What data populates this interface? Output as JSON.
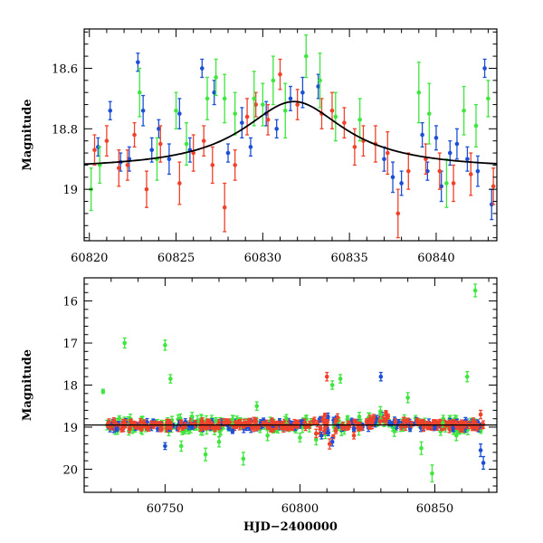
{
  "colors": {
    "blue": "#1a4fd6",
    "red": "#f0422a",
    "green": "#3ee63e",
    "model": "#000000"
  },
  "chart_data": [
    {
      "type": "scatter",
      "xlabel": "",
      "ylabel": "Magnitude",
      "xlim": [
        60819.7,
        60843.5
      ],
      "ylim": [
        19.17,
        18.47
      ],
      "y_inverted": true,
      "xticks": [
        "60820",
        "60825",
        "60830",
        "60835",
        "60840"
      ],
      "yticks": [
        "18.6",
        "18.8",
        "19"
      ],
      "model_curve": {
        "baseline": 18.935,
        "amplitude": 0.225,
        "t0": 60831.8,
        "tE": 3.6
      },
      "series": [
        {
          "color_key": "blue",
          "points": [
            [
              60820.5,
              18.86,
              0.03
            ],
            [
              60821.2,
              18.74,
              0.03
            ],
            [
              60821.8,
              18.91,
              0.03
            ],
            [
              60822.3,
              18.9,
              0.04
            ],
            [
              60822.8,
              18.58,
              0.03
            ],
            [
              60823.1,
              18.74,
              0.05
            ],
            [
              60823.6,
              18.87,
              0.04
            ],
            [
              60824.0,
              18.8,
              0.03
            ],
            [
              60824.6,
              18.9,
              0.05
            ],
            [
              60825.2,
              18.75,
              0.05
            ],
            [
              60825.8,
              18.87,
              0.04
            ],
            [
              60826.5,
              18.6,
              0.03
            ],
            [
              60827.2,
              18.68,
              0.04
            ],
            [
              60828.0,
              18.88,
              0.03
            ],
            [
              60828.8,
              18.78,
              0.05
            ],
            [
              60829.3,
              18.86,
              0.03
            ],
            [
              60830.2,
              18.75,
              0.04
            ],
            [
              60830.8,
              18.8,
              0.03
            ],
            [
              60831.6,
              18.7,
              0.04
            ],
            [
              60832.3,
              18.68,
              0.05
            ],
            [
              60833.2,
              18.66,
              0.04
            ],
            [
              60837.0,
              18.9,
              0.04
            ],
            [
              60837.5,
              18.96,
              0.05
            ],
            [
              60838.0,
              18.98,
              0.04
            ],
            [
              60839.2,
              18.82,
              0.04
            ],
            [
              60839.5,
              18.94,
              0.03
            ],
            [
              60840.0,
              18.83,
              0.04
            ],
            [
              60840.3,
              18.99,
              0.05
            ],
            [
              60840.8,
              18.88,
              0.04
            ],
            [
              60841.2,
              18.85,
              0.05
            ],
            [
              60841.8,
              18.9,
              0.04
            ],
            [
              60842.4,
              18.94,
              0.05
            ],
            [
              60842.8,
              18.6,
              0.03
            ],
            [
              60843.2,
              19.05,
              0.05
            ]
          ]
        },
        {
          "color_key": "red",
          "points": [
            [
              60820.3,
              18.87,
              0.05
            ],
            [
              60821.0,
              18.84,
              0.05
            ],
            [
              60821.7,
              18.93,
              0.06
            ],
            [
              60822.2,
              18.92,
              0.05
            ],
            [
              60822.6,
              18.82,
              0.04
            ],
            [
              60823.3,
              19.0,
              0.06
            ],
            [
              60824.1,
              18.85,
              0.06
            ],
            [
              60825.2,
              18.98,
              0.07
            ],
            [
              60826.0,
              18.88,
              0.06
            ],
            [
              60826.6,
              18.84,
              0.05
            ],
            [
              60827.1,
              18.92,
              0.06
            ],
            [
              60827.8,
              19.06,
              0.08
            ],
            [
              60828.4,
              18.92,
              0.05
            ],
            [
              60829.1,
              18.76,
              0.06
            ],
            [
              60829.6,
              18.72,
              0.04
            ],
            [
              60830.3,
              18.77,
              0.05
            ],
            [
              60831.0,
              18.62,
              0.05
            ],
            [
              60832.0,
              18.72,
              0.05
            ],
            [
              60833.4,
              18.75,
              0.05
            ],
            [
              60834.0,
              18.74,
              0.06
            ],
            [
              60834.7,
              18.78,
              0.05
            ],
            [
              60835.3,
              18.86,
              0.06
            ],
            [
              60835.8,
              18.84,
              0.05
            ],
            [
              60836.5,
              18.85,
              0.06
            ],
            [
              60837.2,
              18.88,
              0.07
            ],
            [
              60837.8,
              19.08,
              0.08
            ],
            [
              60838.4,
              18.94,
              0.06
            ],
            [
              60839.4,
              18.9,
              0.05
            ],
            [
              60840.2,
              18.94,
              0.06
            ],
            [
              60841.0,
              18.98,
              0.06
            ],
            [
              60842.0,
              18.95,
              0.07
            ],
            [
              60843.3,
              18.99,
              0.06
            ]
          ]
        },
        {
          "color_key": "green",
          "points": [
            [
              60820.1,
              19.0,
              0.07
            ],
            [
              60820.6,
              18.92,
              0.06
            ],
            [
              60822.9,
              18.68,
              0.08
            ],
            [
              60823.9,
              18.9,
              0.07
            ],
            [
              60825.0,
              18.74,
              0.06
            ],
            [
              60825.6,
              18.85,
              0.07
            ],
            [
              60826.8,
              18.7,
              0.07
            ],
            [
              60827.3,
              18.63,
              0.06
            ],
            [
              60827.8,
              18.7,
              0.08
            ],
            [
              60828.4,
              18.75,
              0.07
            ],
            [
              60829.5,
              18.7,
              0.09
            ],
            [
              60830.0,
              18.72,
              0.07
            ],
            [
              60830.6,
              18.64,
              0.08
            ],
            [
              60831.3,
              18.74,
              0.09
            ],
            [
              60832.5,
              18.56,
              0.07
            ],
            [
              60833.3,
              18.64,
              0.09
            ],
            [
              60834.2,
              18.76,
              0.08
            ],
            [
              60835.6,
              18.77,
              0.07
            ],
            [
              60839.0,
              18.68,
              0.1
            ],
            [
              60839.6,
              18.75,
              0.1
            ],
            [
              60840.6,
              18.98,
              0.08
            ],
            [
              60841.6,
              18.74,
              0.08
            ],
            [
              60842.3,
              18.79,
              0.07
            ],
            [
              60843.0,
              18.7,
              0.06
            ]
          ]
        }
      ]
    },
    {
      "type": "scatter",
      "xlabel": "HJD−2400000",
      "ylabel": "Magnitude",
      "xlim": [
        60720,
        60873
      ],
      "ylim": [
        20.55,
        15.45
      ],
      "y_inverted": true,
      "xticks": [
        "60750",
        "60800",
        "60850"
      ],
      "yticks": [
        "16",
        "17",
        "18",
        "19",
        "20"
      ],
      "baseline": 18.95,
      "series": [
        {
          "color_key": "green",
          "points": [
            [
              60727,
              18.15,
              0.05
            ],
            [
              60735,
              17.0,
              0.12
            ],
            [
              60750,
              17.05,
              0.12
            ],
            [
              60752,
              17.85,
              0.1
            ],
            [
              60756,
              19.45,
              0.12
            ],
            [
              60760,
              18.75,
              0.1
            ],
            [
              60765,
              19.65,
              0.15
            ],
            [
              60770,
              19.35,
              0.12
            ],
            [
              60775,
              18.82,
              0.1
            ],
            [
              60779,
              19.75,
              0.15
            ],
            [
              60784,
              18.5,
              0.1
            ],
            [
              60788,
              19.2,
              0.12
            ],
            [
              60795,
              18.8,
              0.1
            ],
            [
              60800,
              19.25,
              0.1
            ],
            [
              60806,
              19.3,
              0.12
            ],
            [
              60812,
              18.0,
              0.1
            ],
            [
              60815,
              17.85,
              0.1
            ],
            [
              60822,
              18.75,
              0.1
            ],
            [
              60830,
              18.7,
              0.1
            ],
            [
              60835,
              19.1,
              0.12
            ],
            [
              60840,
              18.3,
              0.12
            ],
            [
              60845,
              19.5,
              0.15
            ],
            [
              60849,
              20.1,
              0.2
            ],
            [
              60853,
              18.9,
              0.1
            ],
            [
              60858,
              19.2,
              0.12
            ],
            [
              60862,
              17.8,
              0.12
            ],
            [
              60865,
              15.75,
              0.15
            ]
          ]
        },
        {
          "color_key": "blue",
          "points": [
            [
              60732,
              19.05,
              0.05
            ],
            [
              60745,
              18.9,
              0.05
            ],
            [
              60750,
              19.45,
              0.08
            ],
            [
              60760,
              19.0,
              0.05
            ],
            [
              60775,
              19.1,
              0.05
            ],
            [
              60790,
              18.95,
              0.05
            ],
            [
              60808,
              19.2,
              0.08
            ],
            [
              60812,
              19.35,
              0.1
            ],
            [
              60820,
              19.05,
              0.05
            ],
            [
              60830,
              17.8,
              0.1
            ],
            [
              60840,
              18.9,
              0.05
            ],
            [
              60850,
              19.0,
              0.05
            ],
            [
              60860,
              19.05,
              0.05
            ],
            [
              60867,
              19.55,
              0.15
            ],
            [
              60868,
              19.85,
              0.15
            ]
          ]
        },
        {
          "color_key": "red",
          "points": [
            [
              60745,
              18.92,
              0.06
            ],
            [
              60770,
              19.0,
              0.06
            ],
            [
              60790,
              18.9,
              0.06
            ],
            [
              60806,
              19.15,
              0.1
            ],
            [
              60810,
              17.8,
              0.1
            ],
            [
              60811,
              19.4,
              0.12
            ],
            [
              60820,
              19.2,
              0.08
            ],
            [
              60826,
              18.8,
              0.08
            ],
            [
              60840,
              18.85,
              0.06
            ],
            [
              60860,
              19.05,
              0.06
            ],
            [
              60867,
              18.7,
              0.1
            ]
          ]
        }
      ],
      "dense_band": {
        "ranges": [
          [
            60728,
            60868
          ]
        ],
        "scatter": 0.1,
        "note_generated_markers": true
      }
    }
  ]
}
